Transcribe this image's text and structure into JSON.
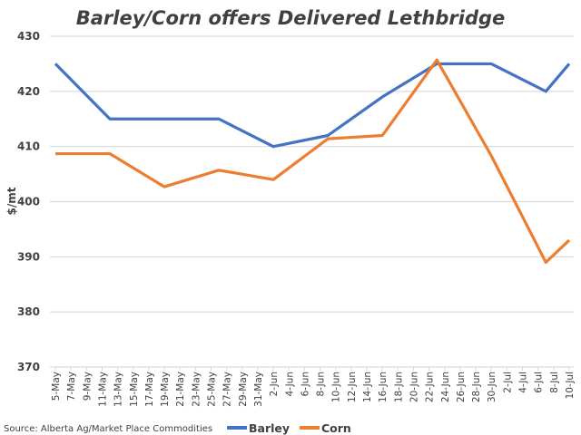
{
  "chart_data": {
    "type": "line",
    "title": "Barley/Corn offers Delivered Lethbridge",
    "xlabel": "",
    "ylabel": "$/mt",
    "ylim": [
      370,
      430
    ],
    "yticks": [
      370,
      380,
      390,
      400,
      410,
      420,
      430
    ],
    "grid": true,
    "legend_position": "bottom",
    "x_tick_labels": [
      "5-May",
      "7-May",
      "9-May",
      "11-May",
      "13-May",
      "15-May",
      "17-May",
      "19-May",
      "21-May",
      "23-May",
      "25-May",
      "27-May",
      "29-May",
      "31-May",
      "2-Jun",
      "4-Jun",
      "6-Jun",
      "8-Jun",
      "10-Jun",
      "12-Jun",
      "14-Jun",
      "16-Jun",
      "18-Jun",
      "20-Jun",
      "22-Jun",
      "24-Jun",
      "26-Jun",
      "28-Jun",
      "30-Jun",
      "2-Jul",
      "4-Jul",
      "6-Jul",
      "8-Jul",
      "10-Jul"
    ],
    "x": [
      "5-May",
      "12-May",
      "19-May",
      "26-May",
      "2-Jun",
      "9-Jun",
      "16-Jun",
      "23-Jun",
      "30-Jun",
      "7-Jul",
      "10-Jul"
    ],
    "x_day_offset": [
      0,
      7,
      14,
      21,
      28,
      35,
      42,
      49,
      56,
      63,
      66
    ],
    "series": [
      {
        "name": "Barley",
        "color": "#4472C4",
        "values": [
          425,
          415,
          415,
          415,
          410,
          412,
          419,
          425,
          425,
          420,
          425
        ]
      },
      {
        "name": "Corn",
        "color": "#ED7D31",
        "values": [
          408.7,
          408.7,
          402.7,
          405.7,
          404,
          411.4,
          412,
          425.7,
          408.3,
          389,
          393
        ]
      }
    ],
    "source": "Source: Alberta Ag/Market Place Commodities"
  }
}
